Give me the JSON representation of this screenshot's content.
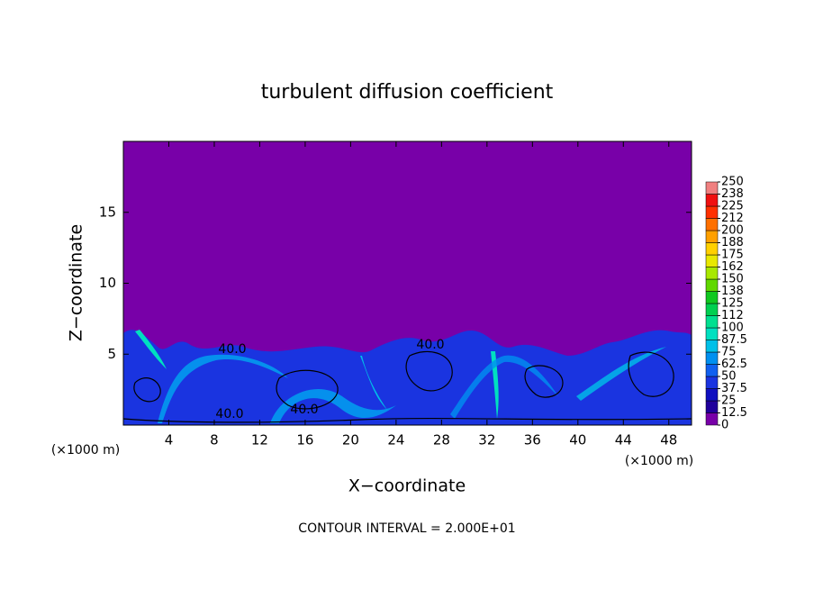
{
  "chart_data": {
    "type": "contour",
    "title": "turbulent diffusion coefficient",
    "xlabel": "X−coordinate",
    "ylabel": "Z−coordinate",
    "x_unit_label": "(×1000 m)",
    "y_unit_label": "(×1000 m)",
    "footer": "CONTOUR INTERVAL = 2.000E+01",
    "contour_labels": [
      "40.0",
      "40.0",
      "40.0",
      "40.0"
    ],
    "xlim": [
      0,
      50
    ],
    "xticks": [
      4,
      8,
      12,
      16,
      20,
      24,
      28,
      32,
      36,
      40,
      44,
      48
    ],
    "ylim": [
      0,
      20
    ],
    "yticks": [
      5,
      10,
      15
    ],
    "clim": [
      0,
      250
    ],
    "cticks": [
      0,
      12.5,
      25,
      37.5,
      50,
      62.5,
      75,
      87.5,
      100,
      {
        "value": 112.5,
        "label": "112"
      },
      125,
      {
        "value": 137.5,
        "label": "138"
      },
      150,
      {
        "value": 162.5,
        "label": "162"
      },
      175,
      {
        "value": 187.5,
        "label": "188"
      },
      200,
      {
        "value": 212.5,
        "label": "212"
      },
      225,
      {
        "value": 237.5,
        "label": "238"
      },
      250
    ],
    "colors": [
      "#7800a8",
      "#20009c",
      "#1010c0",
      "#1a34e0",
      "#1060f0",
      "#0090f0",
      "#00c0e8",
      "#00e0c0",
      "#00e090",
      "#00d050",
      "#10c820",
      "#60d800",
      "#a8e800",
      "#e8e800",
      "#ffd000",
      "#ffa000",
      "#ff7000",
      "#ff3000",
      "#f01010",
      "#f08080"
    ]
  }
}
